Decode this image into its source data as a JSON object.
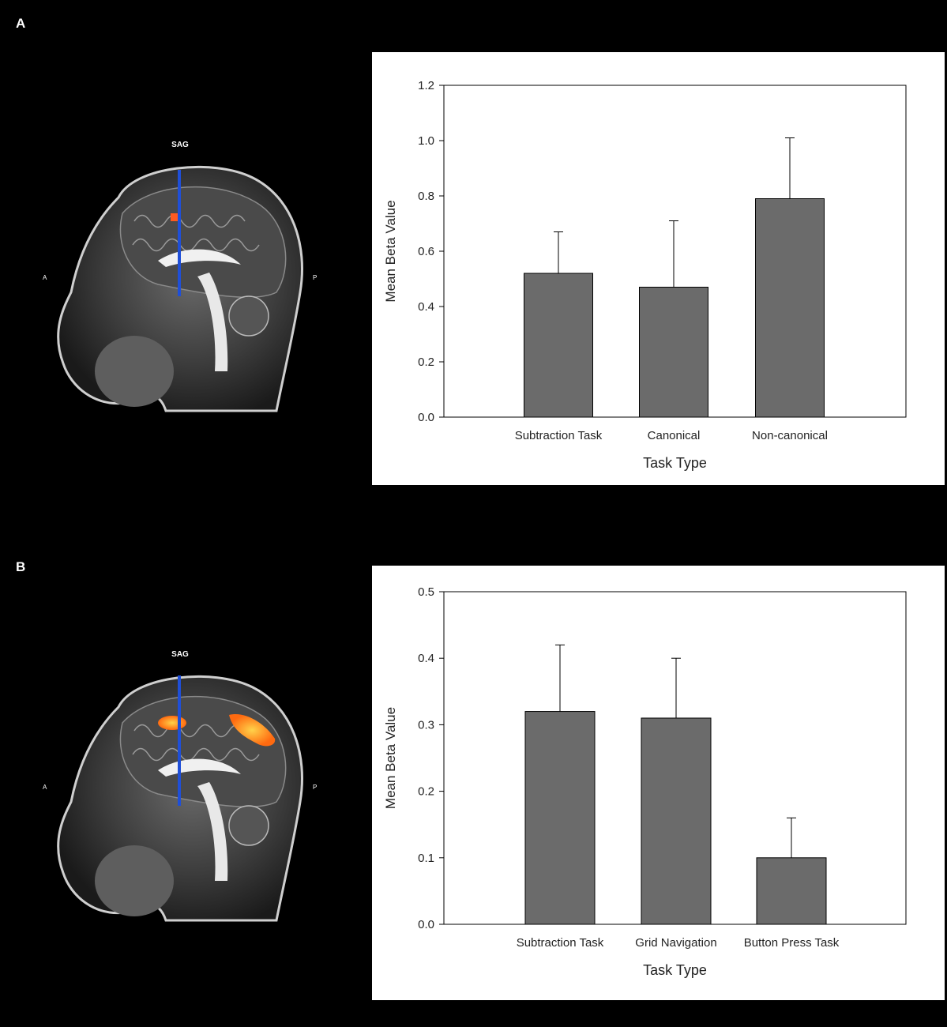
{
  "panels": [
    {
      "letter": "A",
      "brain": {
        "view_label": "SAG",
        "anterior_label": "A",
        "posterior_label": "P",
        "activation_color": "#ff5a1f",
        "line_color": "#1f4fd8"
      }
    },
    {
      "letter": "B",
      "brain": {
        "view_label": "SAG",
        "anterior_label": "A",
        "posterior_label": "P",
        "activation_color": "#ff8a1a",
        "line_color": "#1f4fd8"
      }
    }
  ],
  "chart_data": [
    {
      "type": "bar",
      "categories": [
        "Subtraction Task",
        "Canonical",
        "Non-canonical"
      ],
      "values": [
        0.52,
        0.47,
        0.79
      ],
      "error_plus": [
        0.15,
        0.24,
        0.22
      ],
      "xlabel": "Task Type",
      "ylabel": "Mean Beta Value",
      "ylim": [
        0,
        1.2
      ],
      "yticks": [
        "0.0",
        "0.2",
        "0.4",
        "0.6",
        "0.8",
        "1.0",
        "1.2"
      ],
      "bar_color": "#6b6b6b",
      "grid": false
    },
    {
      "type": "bar",
      "categories": [
        "Subtraction Task",
        "Grid Navigation",
        "Button Press Task"
      ],
      "values": [
        0.32,
        0.31,
        0.1
      ],
      "error_plus": [
        0.1,
        0.09,
        0.06
      ],
      "xlabel": "Task Type",
      "ylabel": "Mean Beta Value",
      "ylim": [
        0,
        0.5
      ],
      "yticks": [
        "0.0",
        "0.1",
        "0.2",
        "0.3",
        "0.4",
        "0.5"
      ],
      "bar_color": "#6b6b6b",
      "grid": false
    }
  ]
}
